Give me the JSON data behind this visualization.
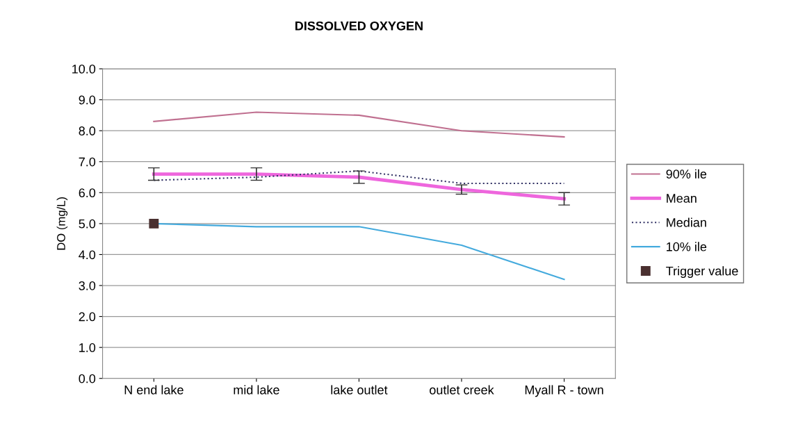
{
  "chart_data": {
    "type": "line",
    "title": "DISSOLVED OXYGEN",
    "ylabel": "DO (mg/L)",
    "categories": [
      "N end lake",
      "mid lake",
      "lake outlet",
      "outlet creek",
      "Myall R - town"
    ],
    "ylim": [
      0,
      10
    ],
    "yticks": [
      {
        "value": 0,
        "label": "0.0"
      },
      {
        "value": 1,
        "label": "1.0"
      },
      {
        "value": 2,
        "label": "2.0"
      },
      {
        "value": 3,
        "label": "3.0"
      },
      {
        "value": 4,
        "label": "4.0"
      },
      {
        "value": 5,
        "label": "5.0"
      },
      {
        "value": 6,
        "label": "6.0"
      },
      {
        "value": 7,
        "label": "7.0"
      },
      {
        "value": 8,
        "label": "8.0"
      },
      {
        "value": 9,
        "label": "9.0"
      },
      {
        "value": 10,
        "label": "10.0"
      }
    ],
    "grid": "y",
    "legend": "right",
    "series": [
      {
        "name": "90% ile",
        "color": "#c07090",
        "values": [
          8.3,
          8.6,
          8.5,
          8.0,
          7.8
        ],
        "line_style": "solid",
        "marker": "none"
      },
      {
        "name": "Mean",
        "color": "#ee66dd",
        "values": [
          6.6,
          6.6,
          6.5,
          6.1,
          5.8
        ],
        "errors": [
          0.2,
          0.2,
          0.2,
          0.15,
          0.2
        ],
        "line_style": "solid",
        "marker": "none"
      },
      {
        "name": "Median",
        "color": "#333366",
        "values": [
          6.4,
          6.5,
          6.7,
          6.3,
          6.3
        ],
        "line_style": "dotted",
        "marker": "none"
      },
      {
        "name": "10% ile",
        "color": "#44aadd",
        "values": [
          5.0,
          4.9,
          4.9,
          4.3,
          3.2
        ],
        "line_style": "solid",
        "marker": "none"
      },
      {
        "name": "Trigger value",
        "type": "scatter",
        "color": "#4a3030",
        "values": [
          5.0,
          null,
          null,
          null,
          null
        ],
        "marker": "square"
      }
    ]
  }
}
